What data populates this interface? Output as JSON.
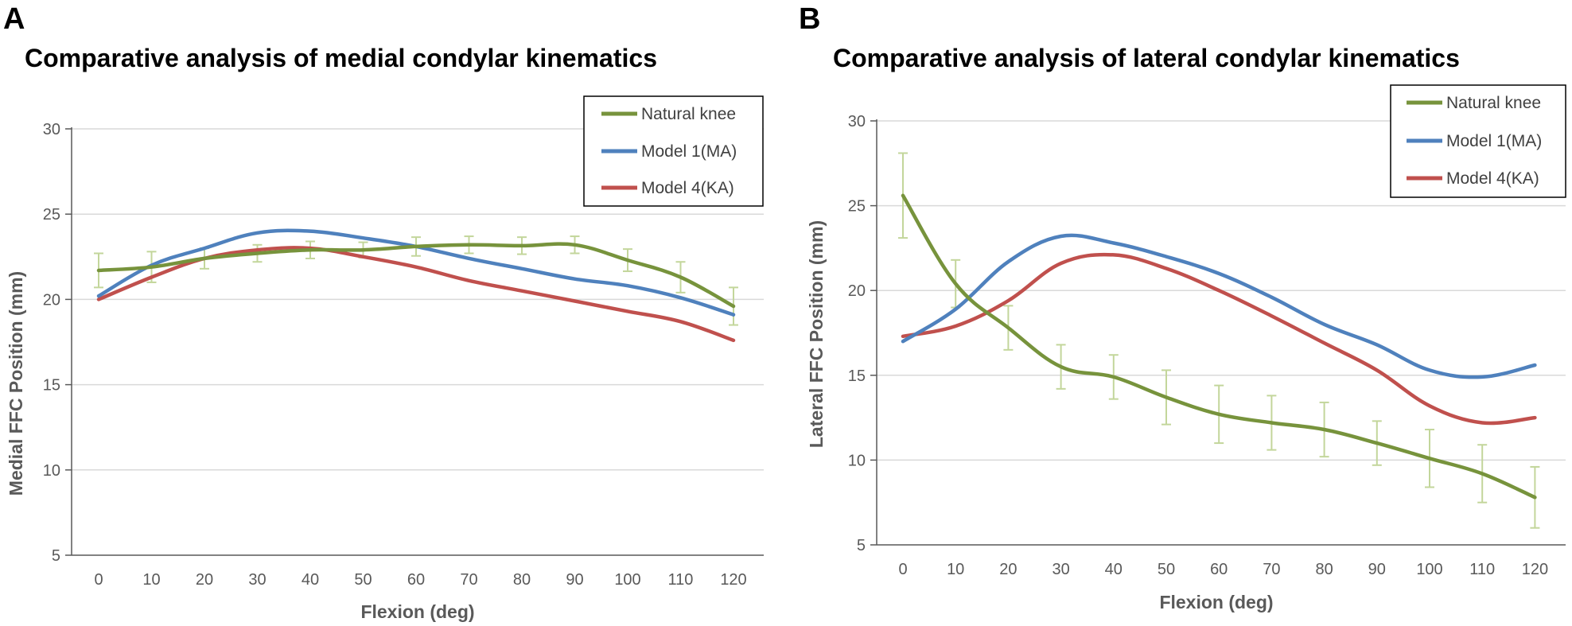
{
  "colors": {
    "natural": "#77933C",
    "model1": "#4F81BD",
    "model4": "#C0504D",
    "errorbar": "#C3D69B",
    "grid": "#D9D9D9",
    "axis": "#595959"
  },
  "chart_data": [
    {
      "panel": "A",
      "type": "line",
      "title": "Comparative analysis of medial condylar kinematics",
      "xlabel": "Flexion (deg)",
      "ylabel": "Medial FFC Position (mm)",
      "ylim": [
        5,
        30
      ],
      "yticks": [
        5,
        10,
        15,
        20,
        25,
        30
      ],
      "grid": true,
      "legend": "top-right",
      "x": [
        0,
        10,
        20,
        30,
        40,
        50,
        60,
        70,
        80,
        90,
        100,
        110,
        120
      ],
      "series": [
        {
          "name": "Natural knee",
          "color_key": "natural",
          "values": [
            21.7,
            21.9,
            22.4,
            22.7,
            22.9,
            22.9,
            23.1,
            23.2,
            23.15,
            23.2,
            22.3,
            21.3,
            19.6
          ],
          "error": [
            1.0,
            0.9,
            0.6,
            0.5,
            0.5,
            0.45,
            0.55,
            0.5,
            0.5,
            0.5,
            0.65,
            0.9,
            1.1
          ]
        },
        {
          "name": "Model 1(MA)",
          "color_key": "model1",
          "values": [
            20.2,
            22.0,
            23.0,
            23.9,
            24.0,
            23.6,
            23.1,
            22.4,
            21.8,
            21.2,
            20.8,
            20.1,
            19.1
          ]
        },
        {
          "name": "Model 4(KA)",
          "color_key": "model4",
          "values": [
            20.0,
            21.3,
            22.4,
            22.9,
            23.0,
            22.5,
            21.9,
            21.1,
            20.5,
            19.9,
            19.3,
            18.7,
            17.6
          ]
        }
      ]
    },
    {
      "panel": "B",
      "type": "line",
      "title": "Comparative analysis of lateral condylar kinematics",
      "xlabel": "Flexion (deg)",
      "ylabel": "Lateral FFC Position (mm)",
      "ylim": [
        5,
        30
      ],
      "yticks": [
        5,
        10,
        15,
        20,
        25,
        30
      ],
      "grid": true,
      "legend": "top-right",
      "x": [
        0,
        10,
        20,
        30,
        40,
        50,
        60,
        70,
        80,
        90,
        100,
        110,
        120
      ],
      "series": [
        {
          "name": "Natural knee",
          "color_key": "natural",
          "values": [
            25.6,
            20.4,
            17.8,
            15.5,
            14.9,
            13.7,
            12.7,
            12.2,
            11.8,
            11.0,
            10.1,
            9.2,
            7.8
          ],
          "error": [
            2.5,
            1.4,
            1.3,
            1.3,
            1.3,
            1.6,
            1.7,
            1.6,
            1.6,
            1.3,
            1.7,
            1.7,
            1.8
          ]
        },
        {
          "name": "Model 1(MA)",
          "color_key": "model1",
          "values": [
            17.0,
            18.9,
            21.7,
            23.2,
            22.8,
            22.0,
            21.0,
            19.6,
            18.0,
            16.8,
            15.3,
            14.9,
            15.6
          ]
        },
        {
          "name": "Model 4(KA)",
          "color_key": "model4",
          "values": [
            17.3,
            17.9,
            19.4,
            21.6,
            22.1,
            21.3,
            20.0,
            18.5,
            16.9,
            15.3,
            13.2,
            12.2,
            12.5
          ]
        }
      ]
    }
  ]
}
